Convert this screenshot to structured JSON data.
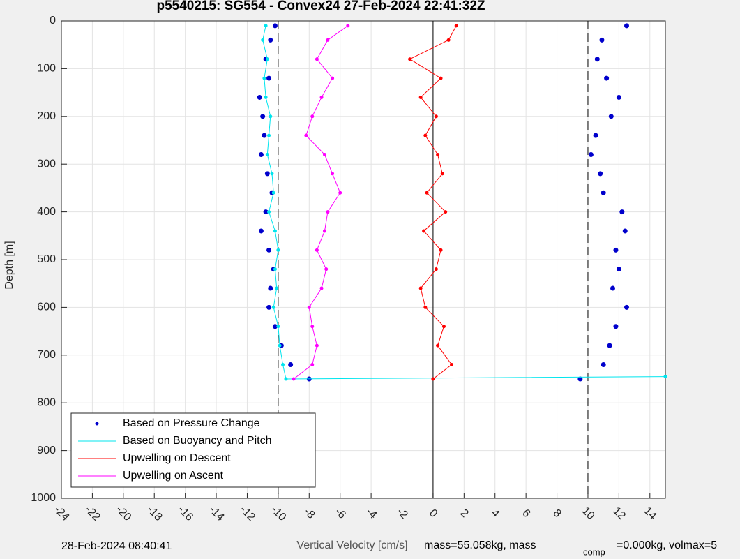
{
  "chart_data": {
    "type": "scatter",
    "title": "p5540215: SG554 - Convex24 27-Feb-2024 22:41:32Z",
    "x_label": "Vertical Velocity [cm/s]",
    "y_label": "Depth [m]",
    "footer_left": "28-Feb-2024 08:40:41",
    "footer_right_a": "mass=55.058kg, mass",
    "footer_right_sub": "comp",
    "footer_right_b": "=0.000kg, volmax=5",
    "xlim": [
      -24,
      15
    ],
    "ylim": [
      0,
      1000
    ],
    "y_reversed": true,
    "grid": true,
    "xticks": [
      -24,
      -22,
      -20,
      -18,
      -16,
      -14,
      -12,
      -10,
      -8,
      -6,
      -4,
      -2,
      0,
      2,
      4,
      6,
      8,
      10,
      12,
      14
    ],
    "yticks": [
      0,
      100,
      200,
      300,
      400,
      500,
      600,
      700,
      800,
      900,
      1000
    ],
    "vlines": [
      {
        "x": -10,
        "style": "dashed"
      },
      {
        "x": 0,
        "style": "solid"
      },
      {
        "x": 10,
        "style": "dashed"
      }
    ],
    "legend": "lower left",
    "series": [
      {
        "name": "Based on Pressure Change",
        "color": "#0000cc",
        "marker": "dot",
        "x": [
          -10.2,
          -10.5,
          -10.8,
          -10.6,
          -11.2,
          -11.0,
          -10.9,
          -11.1,
          -10.7,
          -10.4,
          -10.8,
          -11.1,
          -10.6,
          -10.3,
          -10.5,
          -10.6,
          -10.2,
          -9.8,
          -9.2,
          -8.0,
          12.5,
          10.9,
          10.6,
          11.2,
          12.0,
          11.5,
          10.5,
          10.2,
          10.8,
          11.0,
          12.2,
          12.4,
          11.8,
          12.0,
          11.6,
          12.5,
          11.8,
          11.4,
          11.0,
          9.5
        ],
        "y": [
          10,
          40,
          80,
          120,
          160,
          200,
          240,
          280,
          320,
          360,
          400,
          440,
          480,
          520,
          560,
          600,
          640,
          680,
          720,
          750,
          10,
          40,
          80,
          120,
          160,
          200,
          240,
          280,
          320,
          360,
          400,
          440,
          480,
          520,
          560,
          600,
          640,
          680,
          720,
          750
        ]
      },
      {
        "name": "Based on Buoyancy and Pitch",
        "color": "#00e5ee",
        "marker": "line",
        "x": [
          -10.8,
          -11.0,
          -10.7,
          -10.9,
          -10.8,
          -10.5,
          -10.6,
          -10.7,
          -10.4,
          -10.3,
          -10.6,
          -10.2,
          -10.0,
          -10.2,
          -10.1,
          -10.3,
          -10.0,
          -9.9,
          -9.7,
          -9.5,
          15
        ],
        "y": [
          10,
          40,
          80,
          120,
          160,
          200,
          240,
          280,
          320,
          360,
          400,
          440,
          480,
          520,
          560,
          600,
          640,
          680,
          720,
          750,
          745
        ]
      },
      {
        "name": "Upwelling on Descent",
        "color": "#ff0000",
        "marker": "line",
        "x": [
          1.5,
          1.0,
          -1.5,
          0.5,
          -0.8,
          0.2,
          -0.5,
          0.3,
          0.6,
          -0.4,
          0.8,
          -0.6,
          0.5,
          0.2,
          -0.8,
          -0.5,
          0.7,
          0.3,
          1.2,
          0.0
        ],
        "y": [
          10,
          40,
          80,
          120,
          160,
          200,
          240,
          280,
          320,
          360,
          400,
          440,
          480,
          520,
          560,
          600,
          640,
          680,
          720,
          750
        ]
      },
      {
        "name": "Upwelling on Ascent",
        "color": "#ff00ff",
        "marker": "line",
        "x": [
          -5.5,
          -6.8,
          -7.5,
          -6.5,
          -7.2,
          -7.8,
          -8.2,
          -7.0,
          -6.5,
          -6.0,
          -6.8,
          -7.0,
          -7.5,
          -6.9,
          -7.2,
          -8.0,
          -7.8,
          -7.5,
          -7.8,
          -9.0
        ],
        "y": [
          10,
          40,
          80,
          120,
          160,
          200,
          240,
          280,
          320,
          360,
          400,
          440,
          480,
          520,
          560,
          600,
          640,
          680,
          720,
          750
        ]
      }
    ]
  }
}
